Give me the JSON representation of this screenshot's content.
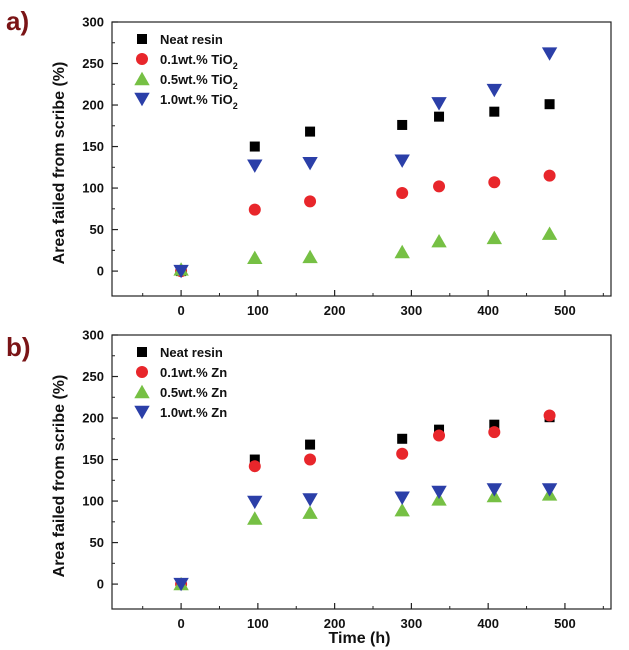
{
  "panels": [
    {
      "letter": "a)",
      "ylabel": "Area failed from scribe (%)",
      "xlabel": "",
      "xlim": [
        -90,
        560
      ],
      "ylim": [
        -30,
        300
      ],
      "xticks": [
        0,
        100,
        200,
        300,
        400,
        500
      ],
      "yticks": [
        0,
        50,
        100,
        150,
        200,
        250,
        300
      ],
      "legend_placement": "top-left",
      "colors": {
        "black": "#000000",
        "red": "#e8262b",
        "green": "#76c044",
        "blue": "#2b3fa8"
      },
      "chart_data": {
        "type": "scatter",
        "series": [
          {
            "name": "Neat resin",
            "sub": "",
            "marker": "square",
            "color": "#000000",
            "x": [
              0,
              96,
              168,
              288,
              336,
              408,
              480
            ],
            "y": [
              0,
              150,
              168,
              176,
              186,
              192,
              201
            ]
          },
          {
            "name": "0.1wt.% TiO",
            "sub": "2",
            "marker": "circle",
            "color": "#e8262b",
            "x": [
              0,
              96,
              168,
              288,
              336,
              408,
              480
            ],
            "y": [
              0,
              74,
              84,
              94,
              102,
              107,
              115
            ]
          },
          {
            "name": "0.5wt.% TiO",
            "sub": "2",
            "marker": "triangle-up",
            "color": "#76c044",
            "x": [
              0,
              96,
              168,
              288,
              336,
              408,
              480
            ],
            "y": [
              2,
              16,
              17,
              23,
              36,
              40,
              45
            ]
          },
          {
            "name": "1.0wt.% TiO",
            "sub": "2",
            "marker": "triangle-down",
            "color": "#2b3fa8",
            "x": [
              0,
              96,
              168,
              288,
              336,
              408,
              480
            ],
            "y": [
              0,
              127,
              130,
              133,
              202,
              218,
              262
            ]
          }
        ]
      }
    },
    {
      "letter": "b)",
      "ylabel": "Area failed from scribe (%)",
      "xlabel": "Time (h)",
      "xlim": [
        -90,
        560
      ],
      "ylim": [
        -30,
        300
      ],
      "xticks": [
        0,
        100,
        200,
        300,
        400,
        500
      ],
      "yticks": [
        0,
        50,
        100,
        150,
        200,
        250,
        300
      ],
      "legend_placement": "top-left",
      "colors": {
        "black": "#000000",
        "red": "#e8262b",
        "green": "#76c044",
        "blue": "#2b3fa8"
      },
      "chart_data": {
        "type": "scatter",
        "series": [
          {
            "name": "Neat resin",
            "sub": "",
            "marker": "square",
            "color": "#000000",
            "x": [
              0,
              96,
              168,
              288,
              336,
              408,
              480
            ],
            "y": [
              0,
              150,
              168,
              175,
              186,
              192,
              201
            ]
          },
          {
            "name": "0.1wt.% Zn",
            "sub": "",
            "marker": "circle",
            "color": "#e8262b",
            "x": [
              0,
              96,
              168,
              288,
              336,
              408,
              480
            ],
            "y": [
              0,
              142,
              150,
              157,
              179,
              183,
              203
            ]
          },
          {
            "name": "0.5wt.% Zn",
            "sub": "",
            "marker": "triangle-up",
            "color": "#76c044",
            "x": [
              0,
              96,
              168,
              288,
              336,
              408,
              480
            ],
            "y": [
              0,
              79,
              86,
              89,
              102,
              106,
              108
            ]
          },
          {
            "name": "1.0wt.% Zn",
            "sub": "",
            "marker": "triangle-down",
            "color": "#2b3fa8",
            "x": [
              0,
              96,
              168,
              288,
              336,
              408,
              480
            ],
            "y": [
              0,
              99,
              102,
              104,
              111,
              114,
              114
            ]
          }
        ]
      }
    }
  ]
}
